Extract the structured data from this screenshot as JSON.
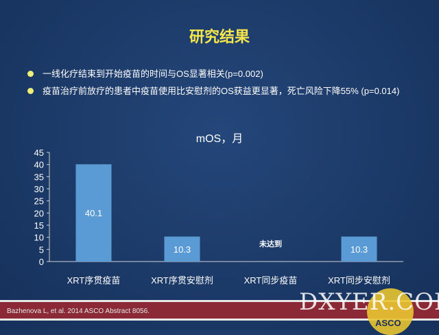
{
  "title": "研究结果",
  "bullets": [
    "一线化疗结束到开始疫苗的时间与OS显著相关(p=0.002)",
    "疫苗治疗前放疗的患者中疫苗使用比安慰剂的OS获益更显著，死亡风险下降55% (p=0.014)"
  ],
  "chart_data": {
    "type": "bar",
    "title": "mOS，月",
    "categories": [
      "XRT序贯疫苗",
      "XRT序贯安慰剂",
      "XRT同步疫苗",
      "XRT同步安慰剂"
    ],
    "values": [
      40.1,
      10.3,
      null,
      10.3
    ],
    "data_labels": [
      "40.1",
      "10.3",
      "未达到",
      "10.3"
    ],
    "ylim": [
      0,
      45
    ],
    "yticks": [
      0,
      5,
      10,
      15,
      20,
      25,
      30,
      35,
      40,
      45
    ],
    "bar_color": "#5b9bd5",
    "grid": false
  },
  "footer": {
    "citation": "Bazhenova L, et al. 2014 ASCO Abstract 8056."
  },
  "watermark": "DXYER.COM",
  "logo_text": "ASCO"
}
